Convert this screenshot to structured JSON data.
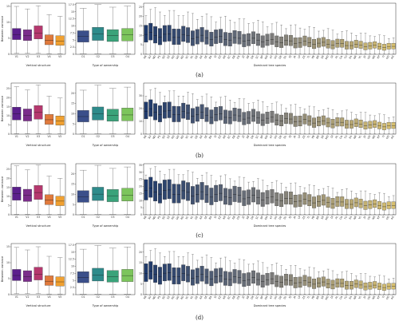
{
  "captions": [
    "(a)",
    "(b)",
    "(c)",
    "(d)"
  ],
  "panel_labels": {
    "vertical": {
      "xlabel": "Vertical structure",
      "ylabel": "Between variance"
    },
    "ownership": {
      "xlabel": "Type of ownership"
    },
    "species": {
      "xlabel": "Dominant tree species"
    }
  },
  "colors": {
    "vertical": [
      "#5b1f8c",
      "#7b2d8b",
      "#b5386e",
      "#e07a3c",
      "#f0a030"
    ],
    "ownership": [
      "#3b4f8a",
      "#2e8b8b",
      "#3aa37a",
      "#7cc55c"
    ],
    "species_dark": "#1f3a6b",
    "species_mid": "#7a7a7a",
    "species_light": "#d8c070"
  },
  "species_codes": [
    "VB",
    "SU",
    "ND",
    "PS",
    "SD",
    "SZ",
    "KD",
    "GD",
    "RD",
    "VC",
    "KL",
    "GE",
    "KK",
    "SK",
    "BA",
    "SI",
    "EZ",
    "KR",
    "EC",
    "EB",
    "DS",
    "JZ",
    "SB",
    "DK",
    "SC",
    "BP",
    "EM",
    "KT",
    "VH",
    "DE",
    "DL",
    "EJ",
    "JA",
    "LP",
    "ZS",
    "TL",
    "PB",
    "BR",
    "SR",
    "MD",
    "DI",
    "AL",
    "OA",
    "TO",
    "EA",
    "NR",
    "VL",
    "JV",
    "VD",
    "NR",
    "KP",
    "TI",
    "OD",
    "AG"
  ],
  "chart_data": [
    {
      "caption": "(a)",
      "charts": [
        {
          "type": "box",
          "name": "vertical",
          "xlabel": "Vertical structure",
          "ylabel": "Between variance",
          "categories": [
            "V1",
            "V2",
            "V3",
            "V4",
            "V5"
          ],
          "ylim": [
            0,
            16
          ],
          "yticks": [
            0,
            5,
            10,
            15
          ],
          "boxes": [
            {
              "min": 0.3,
              "q1": 4.6,
              "median": 6.2,
              "q3": 8.1,
              "max": 15.0
            },
            {
              "min": 0.3,
              "q1": 4.3,
              "median": 5.8,
              "q3": 7.7,
              "max": 14.2
            },
            {
              "min": 0.3,
              "q1": 4.8,
              "median": 6.6,
              "q3": 8.9,
              "max": 15.2
            },
            {
              "min": 0.2,
              "q1": 3.0,
              "median": 4.4,
              "q3": 6.1,
              "max": 12.4
            },
            {
              "min": 0.2,
              "q1": 2.8,
              "median": 4.1,
              "q3": 5.8,
              "max": 11.9
            }
          ]
        },
        {
          "type": "box",
          "name": "ownership",
          "xlabel": "Type of ownership",
          "categories": [
            "O1",
            "O2",
            "O3",
            "O4"
          ],
          "ylim": [
            0,
            18
          ],
          "yticks": [
            0,
            2.5,
            5,
            7.5,
            10,
            12.5,
            15,
            17.5
          ],
          "boxes": [
            {
              "min": 0.2,
              "q1": 4.3,
              "median": 6.3,
              "q3": 8.3,
              "max": 16.2
            },
            {
              "min": 0.2,
              "q1": 4.9,
              "median": 7.1,
              "q3": 9.5,
              "max": 17.5
            },
            {
              "min": 0.2,
              "q1": 4.5,
              "median": 6.6,
              "q3": 8.7,
              "max": 16.6
            },
            {
              "min": 0.2,
              "q1": 4.7,
              "median": 6.9,
              "q3": 9.1,
              "max": 17.0
            }
          ]
        },
        {
          "type": "box",
          "name": "species",
          "xlabel": "Dominant tree species",
          "ylim": [
            0,
            27
          ],
          "yticks": [
            0,
            5,
            10,
            15,
            20,
            25
          ],
          "trend": {
            "start": 10.5,
            "end": 3.8,
            "iqr_start": 7.5,
            "iqr_end": 2.5,
            "whisker_start": 24,
            "whisker_end": 9
          }
        }
      ]
    },
    {
      "caption": "(b)",
      "charts": [
        {
          "type": "box",
          "name": "vertical",
          "xlabel": "Vertical structure",
          "ylabel": "Between variance",
          "categories": [
            "V1",
            "V2",
            "V3",
            "V4",
            "V5"
          ],
          "ylim": [
            0,
            28
          ],
          "yticks": [
            0,
            5,
            10,
            15,
            20,
            25
          ],
          "boxes": [
            {
              "min": 0.3,
              "q1": 7.8,
              "median": 11.2,
              "q3": 14.8,
              "max": 26.0
            },
            {
              "min": 0.3,
              "q1": 7.2,
              "median": 10.4,
              "q3": 13.8,
              "max": 24.2
            },
            {
              "min": 0.3,
              "q1": 8.2,
              "median": 11.9,
              "q3": 15.7,
              "max": 27.0
            },
            {
              "min": 0.2,
              "q1": 5.4,
              "median": 7.9,
              "q3": 10.8,
              "max": 20.8
            },
            {
              "min": 0.2,
              "q1": 4.9,
              "median": 7.3,
              "q3": 10.0,
              "max": 19.8
            }
          ]
        },
        {
          "type": "box",
          "name": "ownership",
          "xlabel": "Type of ownership",
          "categories": [
            "O1",
            "O2",
            "O3",
            "O4"
          ],
          "ylim": [
            0,
            25
          ],
          "yticks": [
            0,
            5,
            10,
            15,
            20
          ],
          "boxes": [
            {
              "min": 0.2,
              "q1": 6.0,
              "median": 8.6,
              "q3": 11.6,
              "max": 21.5
            },
            {
              "min": 0.2,
              "q1": 6.9,
              "median": 9.9,
              "q3": 13.3,
              "max": 24.0
            },
            {
              "min": 0.2,
              "q1": 6.3,
              "median": 9.1,
              "q3": 12.2,
              "max": 22.4
            },
            {
              "min": 0.2,
              "q1": 6.5,
              "median": 9.4,
              "q3": 12.8,
              "max": 23.0
            }
          ]
        },
        {
          "type": "box",
          "name": "species",
          "xlabel": "Dominant tree species",
          "ylim": [
            0,
            40
          ],
          "yticks": [
            0,
            10,
            20,
            30
          ],
          "trend": {
            "start": 18,
            "end": 6,
            "iqr_start": 11,
            "iqr_end": 4,
            "whisker_start": 35,
            "whisker_end": 14
          }
        }
      ]
    },
    {
      "caption": "(c)",
      "charts": [
        {
          "type": "box",
          "name": "vertical",
          "xlabel": "Vertical structure",
          "ylabel": "Between variance",
          "categories": [
            "V1",
            "V2",
            "V3",
            "V4",
            "V5"
          ],
          "ylim": [
            0,
            28
          ],
          "yticks": [
            0,
            5,
            10,
            15,
            20,
            25
          ],
          "boxes": [
            {
              "min": 0.3,
              "q1": 8.0,
              "median": 11.5,
              "q3": 15.2,
              "max": 26.8
            },
            {
              "min": 0.3,
              "q1": 7.3,
              "median": 10.6,
              "q3": 14.0,
              "max": 24.6
            },
            {
              "min": 0.3,
              "q1": 8.4,
              "median": 12.2,
              "q3": 16.1,
              "max": 27.2
            },
            {
              "min": 0.2,
              "q1": 5.6,
              "median": 8.1,
              "q3": 11.0,
              "max": 21.2
            },
            {
              "min": 0.2,
              "q1": 5.0,
              "median": 7.5,
              "q3": 10.2,
              "max": 20.0
            }
          ]
        },
        {
          "type": "box",
          "name": "ownership",
          "xlabel": "Type of ownership",
          "categories": [
            "O1",
            "O2",
            "O3",
            "O4"
          ],
          "ylim": [
            0,
            25
          ],
          "yticks": [
            0,
            5,
            10,
            15,
            20
          ],
          "boxes": [
            {
              "min": 0.2,
              "q1": 6.1,
              "median": 8.8,
              "q3": 11.8,
              "max": 21.8
            },
            {
              "min": 0.2,
              "q1": 7.0,
              "median": 10.1,
              "q3": 13.5,
              "max": 24.2
            },
            {
              "min": 0.2,
              "q1": 6.4,
              "median": 9.3,
              "q3": 12.4,
              "max": 22.7
            },
            {
              "min": 0.2,
              "q1": 6.7,
              "median": 9.6,
              "q3": 13.0,
              "max": 23.4
            }
          ]
        },
        {
          "type": "box",
          "name": "species",
          "xlabel": "Dominant tree species",
          "ylim": [
            0,
            36
          ],
          "yticks": [
            0,
            5,
            10,
            15,
            20,
            25,
            30,
            35
          ],
          "trend": {
            "start": 17,
            "end": 6,
            "iqr_start": 12,
            "iqr_end": 4,
            "whisker_start": 33,
            "whisker_end": 14
          }
        }
      ]
    },
    {
      "caption": "(d)",
      "charts": [
        {
          "type": "box",
          "name": "vertical",
          "xlabel": "Vertical structure",
          "ylabel": "Between variance",
          "categories": [
            "V1",
            "V2",
            "V3",
            "V4",
            "V5"
          ],
          "ylim": [
            0,
            16
          ],
          "yticks": [
            0,
            5,
            10,
            15
          ],
          "boxes": [
            {
              "min": 0.3,
              "q1": 4.4,
              "median": 6.0,
              "q3": 7.9,
              "max": 14.8
            },
            {
              "min": 0.3,
              "q1": 4.1,
              "median": 5.6,
              "q3": 7.5,
              "max": 14.0
            },
            {
              "min": 0.3,
              "q1": 4.6,
              "median": 6.4,
              "q3": 8.6,
              "max": 15.0
            },
            {
              "min": 0.2,
              "q1": 2.9,
              "median": 4.2,
              "q3": 5.9,
              "max": 12.0
            },
            {
              "min": 0.2,
              "q1": 2.7,
              "median": 4.0,
              "q3": 5.6,
              "max": 11.6
            }
          ]
        },
        {
          "type": "box",
          "name": "ownership",
          "xlabel": "Type of ownership",
          "categories": [
            "O1",
            "O2",
            "O3",
            "O4"
          ],
          "ylim": [
            0,
            18
          ],
          "yticks": [
            0,
            2.5,
            5,
            7.5,
            10,
            12.5,
            15,
            17.5
          ],
          "boxes": [
            {
              "min": 0.2,
              "q1": 4.2,
              "median": 6.1,
              "q3": 8.1,
              "max": 16.0
            },
            {
              "min": 0.2,
              "q1": 4.8,
              "median": 6.9,
              "q3": 9.3,
              "max": 17.3
            },
            {
              "min": 0.2,
              "q1": 4.4,
              "median": 6.4,
              "q3": 8.5,
              "max": 16.4
            },
            {
              "min": 0.2,
              "q1": 4.6,
              "median": 6.7,
              "q3": 8.9,
              "max": 16.8
            }
          ]
        },
        {
          "type": "box",
          "name": "species",
          "xlabel": "Dominant tree species",
          "ylim": [
            0,
            24
          ],
          "yticks": [
            0,
            5,
            10,
            15,
            20
          ],
          "trend": {
            "start": 10,
            "end": 3.5,
            "iqr_start": 7,
            "iqr_end": 2.3,
            "whisker_start": 21,
            "whisker_end": 8
          }
        }
      ]
    }
  ]
}
